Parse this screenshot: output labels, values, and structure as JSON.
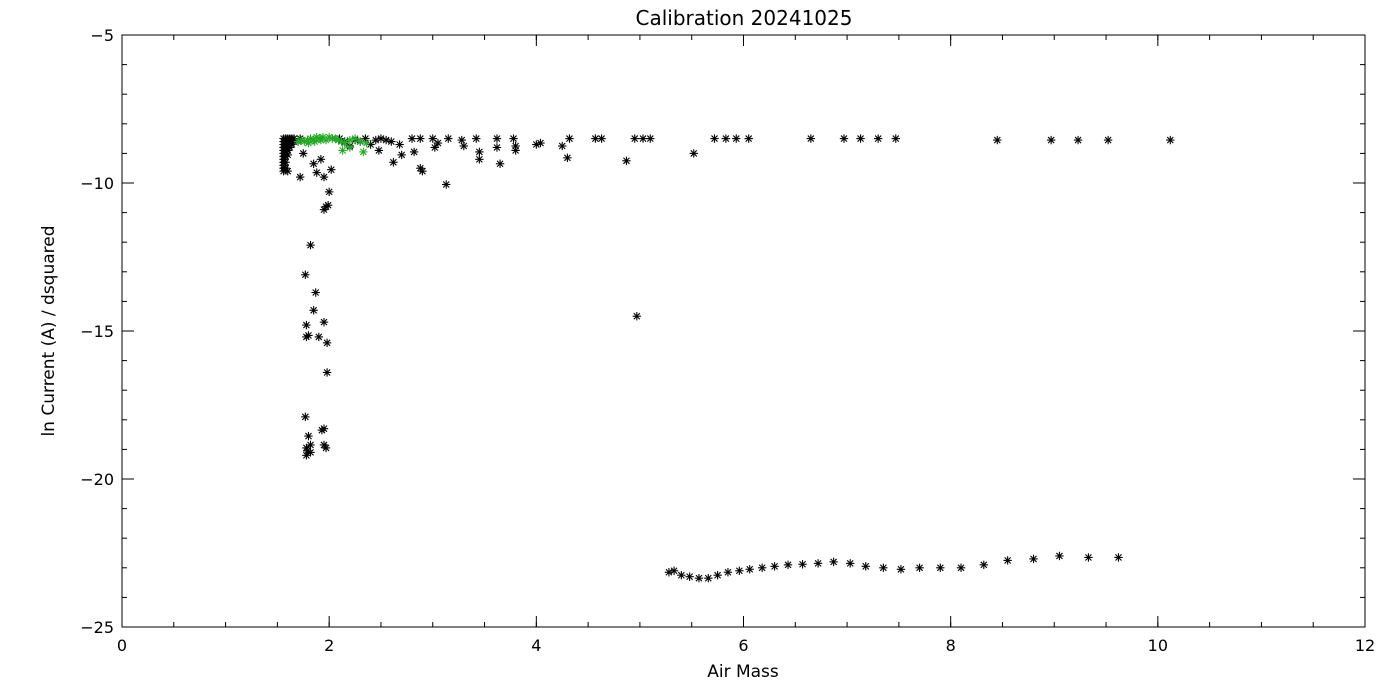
{
  "chart_data": {
    "type": "scatter",
    "title": "Calibration 20241025",
    "xlabel": "Air Mass",
    "ylabel": "ln Current (A) / dsquared",
    "xlim": [
      0,
      12
    ],
    "ylim": [
      -25,
      -5
    ],
    "x_ticks": [
      0,
      2,
      4,
      6,
      8,
      10,
      12
    ],
    "x_tick_labels": [
      "0",
      "2",
      "4",
      "6",
      "8",
      "10",
      "12"
    ],
    "x_minor_step": 0.5,
    "y_ticks": [
      -25,
      -20,
      -15,
      -10,
      -5
    ],
    "y_tick_labels": [
      "−25",
      "−20",
      "−15",
      "−10",
      "−5"
    ],
    "y_minor_step": 1,
    "grid": false,
    "marker": "asterisk",
    "series": [
      {
        "color": "#000000",
        "points": [
          [
            1.56,
            -8.5
          ],
          [
            1.56,
            -8.6
          ],
          [
            1.56,
            -8.7
          ],
          [
            1.56,
            -8.8
          ],
          [
            1.56,
            -8.9
          ],
          [
            1.56,
            -9.0
          ],
          [
            1.56,
            -9.1
          ],
          [
            1.56,
            -9.2
          ],
          [
            1.56,
            -9.3
          ],
          [
            1.56,
            -9.4
          ],
          [
            1.56,
            -9.5
          ],
          [
            1.56,
            -9.6
          ],
          [
            1.58,
            -8.5
          ],
          [
            1.58,
            -8.65
          ],
          [
            1.58,
            -8.8
          ],
          [
            1.58,
            -8.95
          ],
          [
            1.58,
            -9.1
          ],
          [
            1.58,
            -9.3
          ],
          [
            1.58,
            -9.5
          ],
          [
            1.6,
            -8.5
          ],
          [
            1.6,
            -8.6
          ],
          [
            1.6,
            -8.75
          ],
          [
            1.6,
            -8.9
          ],
          [
            1.6,
            -9.05
          ],
          [
            1.6,
            -9.6
          ],
          [
            1.62,
            -8.5
          ],
          [
            1.62,
            -8.65
          ],
          [
            1.62,
            -8.8
          ],
          [
            1.64,
            -8.5
          ],
          [
            1.64,
            -8.6
          ],
          [
            1.64,
            -8.7
          ],
          [
            1.66,
            -8.5
          ],
          [
            1.66,
            -8.6
          ],
          [
            1.7,
            -8.6
          ],
          [
            1.72,
            -8.5
          ],
          [
            1.75,
            -9.0
          ],
          [
            1.72,
            -9.8
          ],
          [
            1.77,
            -13.1
          ],
          [
            1.78,
            -14.8
          ],
          [
            1.78,
            -15.2
          ],
          [
            1.8,
            -15.15
          ],
          [
            1.82,
            -12.1
          ],
          [
            1.85,
            -14.3
          ],
          [
            1.87,
            -13.7
          ],
          [
            1.9,
            -15.2
          ],
          [
            1.95,
            -14.7
          ],
          [
            1.98,
            -15.4
          ],
          [
            1.98,
            -16.4
          ],
          [
            1.85,
            -9.35
          ],
          [
            1.88,
            -9.65
          ],
          [
            1.92,
            -9.2
          ],
          [
            1.95,
            -9.8
          ],
          [
            1.95,
            -10.9
          ],
          [
            1.97,
            -10.8
          ],
          [
            1.99,
            -10.75
          ],
          [
            2.0,
            -10.3
          ],
          [
            2.02,
            -9.55
          ],
          [
            1.77,
            -17.9
          ],
          [
            1.8,
            -18.55
          ],
          [
            1.78,
            -18.95
          ],
          [
            1.79,
            -19.05
          ],
          [
            1.78,
            -19.2
          ],
          [
            1.82,
            -19.1
          ],
          [
            1.82,
            -18.85
          ],
          [
            1.93,
            -18.35
          ],
          [
            1.95,
            -18.3
          ],
          [
            1.95,
            -18.85
          ],
          [
            1.97,
            -18.95
          ],
          [
            2.1,
            -8.5
          ],
          [
            2.15,
            -8.6
          ],
          [
            2.2,
            -8.75
          ],
          [
            2.25,
            -8.55
          ],
          [
            2.3,
            -8.6
          ],
          [
            2.35,
            -8.5
          ],
          [
            2.4,
            -8.7
          ],
          [
            2.45,
            -8.55
          ],
          [
            2.5,
            -8.5
          ],
          [
            2.55,
            -8.55
          ],
          [
            2.6,
            -8.6
          ],
          [
            2.48,
            -8.9
          ],
          [
            2.62,
            -9.3
          ],
          [
            2.68,
            -8.7
          ],
          [
            2.7,
            -9.05
          ],
          [
            2.8,
            -8.5
          ],
          [
            2.82,
            -8.95
          ],
          [
            2.88,
            -9.5
          ],
          [
            2.9,
            -9.6
          ],
          [
            2.88,
            -8.5
          ],
          [
            3.0,
            -8.5
          ],
          [
            3.02,
            -8.8
          ],
          [
            3.05,
            -8.65
          ],
          [
            3.15,
            -8.5
          ],
          [
            3.13,
            -10.05
          ],
          [
            3.28,
            -8.55
          ],
          [
            3.3,
            -8.75
          ],
          [
            3.42,
            -8.5
          ],
          [
            3.45,
            -8.95
          ],
          [
            3.45,
            -9.2
          ],
          [
            3.62,
            -8.5
          ],
          [
            3.62,
            -8.8
          ],
          [
            3.65,
            -9.35
          ],
          [
            3.78,
            -8.5
          ],
          [
            3.8,
            -8.75
          ],
          [
            3.8,
            -8.9
          ],
          [
            4.0,
            -8.7
          ],
          [
            4.04,
            -8.65
          ],
          [
            4.25,
            -8.75
          ],
          [
            4.3,
            -9.15
          ],
          [
            4.32,
            -8.5
          ],
          [
            4.57,
            -8.5
          ],
          [
            4.63,
            -8.5
          ],
          [
            4.87,
            -9.25
          ],
          [
            4.95,
            -8.5
          ],
          [
            5.03,
            -8.5
          ],
          [
            5.1,
            -8.5
          ],
          [
            4.97,
            -14.5
          ],
          [
            5.52,
            -9.0
          ],
          [
            5.72,
            -8.5
          ],
          [
            5.83,
            -8.5
          ],
          [
            5.93,
            -8.5
          ],
          [
            6.05,
            -8.5
          ],
          [
            6.65,
            -8.5
          ],
          [
            6.97,
            -8.5
          ],
          [
            7.13,
            -8.5
          ],
          [
            7.3,
            -8.5
          ],
          [
            7.47,
            -8.5
          ],
          [
            8.45,
            -8.55
          ],
          [
            8.97,
            -8.55
          ],
          [
            9.23,
            -8.55
          ],
          [
            9.52,
            -8.55
          ],
          [
            10.12,
            -8.55
          ],
          [
            5.28,
            -23.15
          ],
          [
            5.33,
            -23.1
          ],
          [
            5.4,
            -23.25
          ],
          [
            5.48,
            -23.3
          ],
          [
            5.57,
            -23.35
          ],
          [
            5.66,
            -23.35
          ],
          [
            5.75,
            -23.25
          ],
          [
            5.85,
            -23.15
          ],
          [
            5.96,
            -23.1
          ],
          [
            6.06,
            -23.05
          ],
          [
            6.18,
            -23.0
          ],
          [
            6.3,
            -22.95
          ],
          [
            6.43,
            -22.9
          ],
          [
            6.57,
            -22.88
          ],
          [
            6.72,
            -22.85
          ],
          [
            6.87,
            -22.8
          ],
          [
            7.03,
            -22.85
          ],
          [
            7.18,
            -22.95
          ],
          [
            7.35,
            -23.0
          ],
          [
            7.52,
            -23.05
          ],
          [
            7.7,
            -23.0
          ],
          [
            7.9,
            -23.0
          ],
          [
            8.1,
            -23.0
          ],
          [
            8.32,
            -22.9
          ],
          [
            8.55,
            -22.75
          ],
          [
            8.8,
            -22.7
          ],
          [
            9.05,
            -22.6
          ],
          [
            9.33,
            -22.65
          ],
          [
            9.62,
            -22.65
          ]
        ]
      },
      {
        "color": "#22aa22",
        "points": [
          [
            1.7,
            -8.6
          ],
          [
            1.73,
            -8.55
          ],
          [
            1.76,
            -8.6
          ],
          [
            1.79,
            -8.55
          ],
          [
            1.82,
            -8.5
          ],
          [
            1.85,
            -8.55
          ],
          [
            1.88,
            -8.45
          ],
          [
            1.91,
            -8.5
          ],
          [
            1.94,
            -8.45
          ],
          [
            1.97,
            -8.55
          ],
          [
            2.0,
            -8.45
          ],
          [
            2.03,
            -8.5
          ],
          [
            2.06,
            -8.5
          ],
          [
            2.09,
            -8.55
          ],
          [
            2.12,
            -8.6
          ],
          [
            2.15,
            -8.65
          ],
          [
            2.2,
            -8.55
          ],
          [
            2.25,
            -8.5
          ],
          [
            2.3,
            -8.6
          ],
          [
            2.13,
            -8.9
          ],
          [
            2.2,
            -8.8
          ],
          [
            2.33,
            -8.95
          ],
          [
            2.36,
            -8.65
          ],
          [
            1.8,
            -8.65
          ],
          [
            1.86,
            -8.6
          ],
          [
            1.92,
            -8.55
          ]
        ]
      }
    ]
  }
}
